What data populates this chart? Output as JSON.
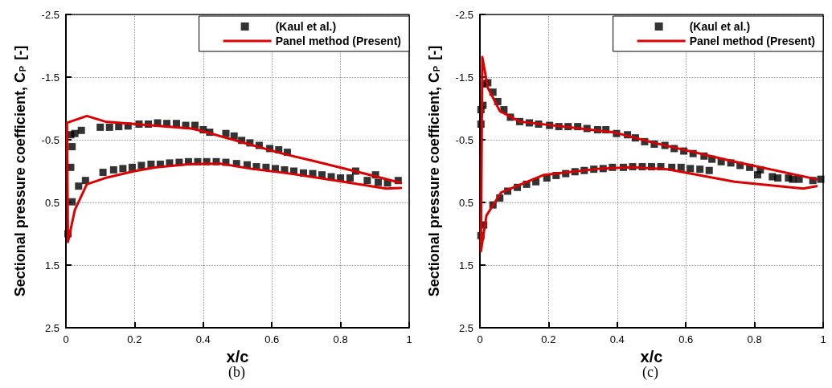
{
  "chart_data": [
    {
      "type": "scatter",
      "xlabel": "x/c",
      "ylabel": "Sectional pressure coefficient, C$_{P}$ [-]",
      "annotations": [
        "(b)"
      ],
      "xlim": [
        0,
        1
      ],
      "xticks": [
        0,
        0.2,
        0.4,
        0.6,
        0.8,
        1
      ],
      "ylim": [
        2.5,
        -2.5
      ],
      "yticks": [
        -2.5,
        -1.5,
        -0.5,
        0.5,
        1.5,
        2.5
      ],
      "grid": true,
      "legend": "top right",
      "series": [
        {
          "name": "(Kaul et al.)",
          "marker": "square",
          "color": "#000000",
          "x": [
            0.014,
            0.026,
            0.045,
            0.018,
            0.014,
            0.037,
            0.057,
            0.018,
            0.006,
            0.1,
            0.127,
            0.154,
            0.181,
            0.213,
            0.24,
            0.267,
            0.294,
            0.322,
            0.349,
            0.376,
            0.4,
            0.419,
            0.466,
            0.49,
            0.512,
            0.536,
            0.563,
            0.594,
            0.62,
            0.645,
            0.844,
            0.902,
            0.968,
            0.108,
            0.139,
            0.166,
            0.193,
            0.22,
            0.248,
            0.275,
            0.302,
            0.33,
            0.357,
            0.384,
            0.41,
            0.438,
            0.466,
            0.497,
            0.528,
            0.555,
            0.583,
            0.61,
            0.637,
            0.664,
            0.692,
            0.719,
            0.746,
            0.773,
            0.8,
            0.828,
            0.878,
            0.91,
            0.937
          ],
          "values": [
            -0.58,
            -0.6,
            -0.65,
            -0.39,
            -0.06,
            0.24,
            0.15,
            0.49,
            1.0,
            -0.7,
            -0.7,
            -0.71,
            -0.72,
            -0.75,
            -0.75,
            -0.77,
            -0.76,
            -0.76,
            -0.73,
            -0.73,
            -0.66,
            -0.62,
            -0.6,
            -0.56,
            -0.49,
            -0.45,
            -0.41,
            -0.36,
            -0.34,
            -0.3,
            0.0,
            0.06,
            0.15,
            0.02,
            -0.02,
            -0.04,
            -0.06,
            -0.09,
            -0.11,
            -0.11,
            -0.13,
            -0.14,
            -0.15,
            -0.15,
            -0.15,
            -0.15,
            -0.14,
            -0.12,
            -0.1,
            -0.07,
            -0.06,
            -0.04,
            -0.02,
            0.0,
            0.03,
            0.04,
            0.06,
            0.09,
            0.11,
            0.11,
            0.15,
            0.18,
            0.19
          ]
        },
        {
          "name": "Panel method (Present)",
          "type": "line",
          "marker": "none",
          "line_style": "solid",
          "color": "#dd0000",
          "x": [
            0.976,
            0.886,
            0.73,
            0.63,
            0.396,
            0.365,
            0.115,
            0.061,
            0.003,
            0.006,
            0.026,
            0.061,
            0.115,
            0.2,
            0.263,
            0.357,
            0.45,
            0.536,
            0.653,
            0.808,
            0.933,
            0.976
          ],
          "values": [
            0.19,
            0.06,
            -0.15,
            -0.28,
            -0.64,
            -0.68,
            -0.79,
            -0.88,
            -0.77,
            1.13,
            0.62,
            0.21,
            0.11,
            0.0,
            -0.06,
            -0.11,
            -0.12,
            -0.04,
            0.04,
            0.17,
            0.28,
            0.27
          ]
        }
      ]
    },
    {
      "type": "scatter",
      "xlabel": "x/c",
      "ylabel": "Sectional pressure coefficient, C$_{P}$ [-]",
      "annotations": [
        "(c)"
      ],
      "xlim": [
        0,
        1
      ],
      "xticks": [
        0,
        0.2,
        0.4,
        0.6,
        0.8,
        1
      ],
      "ylim": [
        2.5,
        -2.5
      ],
      "yticks": [
        -2.5,
        -1.5,
        -0.5,
        0.5,
        1.5,
        2.5
      ],
      "grid": true,
      "legend": "top right",
      "series": [
        {
          "name": "(Kaul et al.)",
          "marker": "square",
          "color": "#000000",
          "x": [
            0.003,
            0.003,
            0.009,
            0.015,
            0.023,
            0.038,
            0.052,
            0.07,
            0.089,
            0.116,
            0.144,
            0.171,
            0.203,
            0.23,
            0.257,
            0.285,
            0.312,
            0.343,
            0.367,
            0.398,
            0.43,
            0.453,
            0.48,
            0.508,
            0.539,
            0.566,
            0.594,
            0.621,
            0.653,
            0.676,
            0.703,
            0.731,
            0.758,
            0.786,
            0.817,
            0.852,
            0.899,
            0.93,
            0.97,
            0.993,
            0.003,
            0.011,
            0.038,
            0.058,
            0.081,
            0.109,
            0.136,
            0.163,
            0.195,
            0.222,
            0.25,
            0.277,
            0.304,
            0.332,
            0.359,
            0.386,
            0.418,
            0.445,
            0.473,
            0.5,
            0.527,
            0.559,
            0.586,
            0.613,
            0.641,
            0.668,
            0.809,
            0.868,
            0.911
          ],
          "values": [
            -0.75,
            -0.98,
            -1.05,
            -1.39,
            -1.41,
            -1.26,
            -1.11,
            -0.98,
            -0.86,
            -0.79,
            -0.77,
            -0.75,
            -0.73,
            -0.71,
            -0.71,
            -0.71,
            -0.68,
            -0.66,
            -0.66,
            -0.6,
            -0.58,
            -0.53,
            -0.47,
            -0.43,
            -0.41,
            -0.36,
            -0.32,
            -0.28,
            -0.24,
            -0.19,
            -0.15,
            -0.13,
            -0.09,
            -0.06,
            -0.02,
            0.09,
            0.11,
            0.13,
            0.15,
            0.13,
            1.03,
            0.86,
            0.54,
            0.43,
            0.32,
            0.26,
            0.21,
            0.17,
            0.11,
            0.07,
            0.04,
            0.01,
            -0.01,
            -0.03,
            -0.04,
            -0.06,
            -0.06,
            -0.07,
            -0.07,
            -0.07,
            -0.07,
            -0.06,
            -0.06,
            -0.04,
            -0.03,
            -0.01,
            0.06,
            0.11,
            0.13
          ]
        },
        {
          "name": "Panel method (Present)",
          "type": "line",
          "marker": "none",
          "line_style": "solid",
          "color": "#dd0000",
          "x": [
            0.981,
            0.742,
            0.508,
            0.39,
            0.116,
            0.058,
            0.023,
            0.007,
            0.003,
            0.019,
            0.062,
            0.187,
            0.351,
            0.445,
            0.547,
            0.742,
            0.942,
            0.981
          ],
          "values": [
            0.13,
            -0.15,
            -0.45,
            -0.62,
            -0.79,
            -0.96,
            -1.33,
            -1.82,
            1.28,
            0.71,
            0.34,
            0.06,
            -0.04,
            -0.06,
            -0.03,
            0.17,
            0.28,
            0.24
          ]
        }
      ]
    }
  ]
}
